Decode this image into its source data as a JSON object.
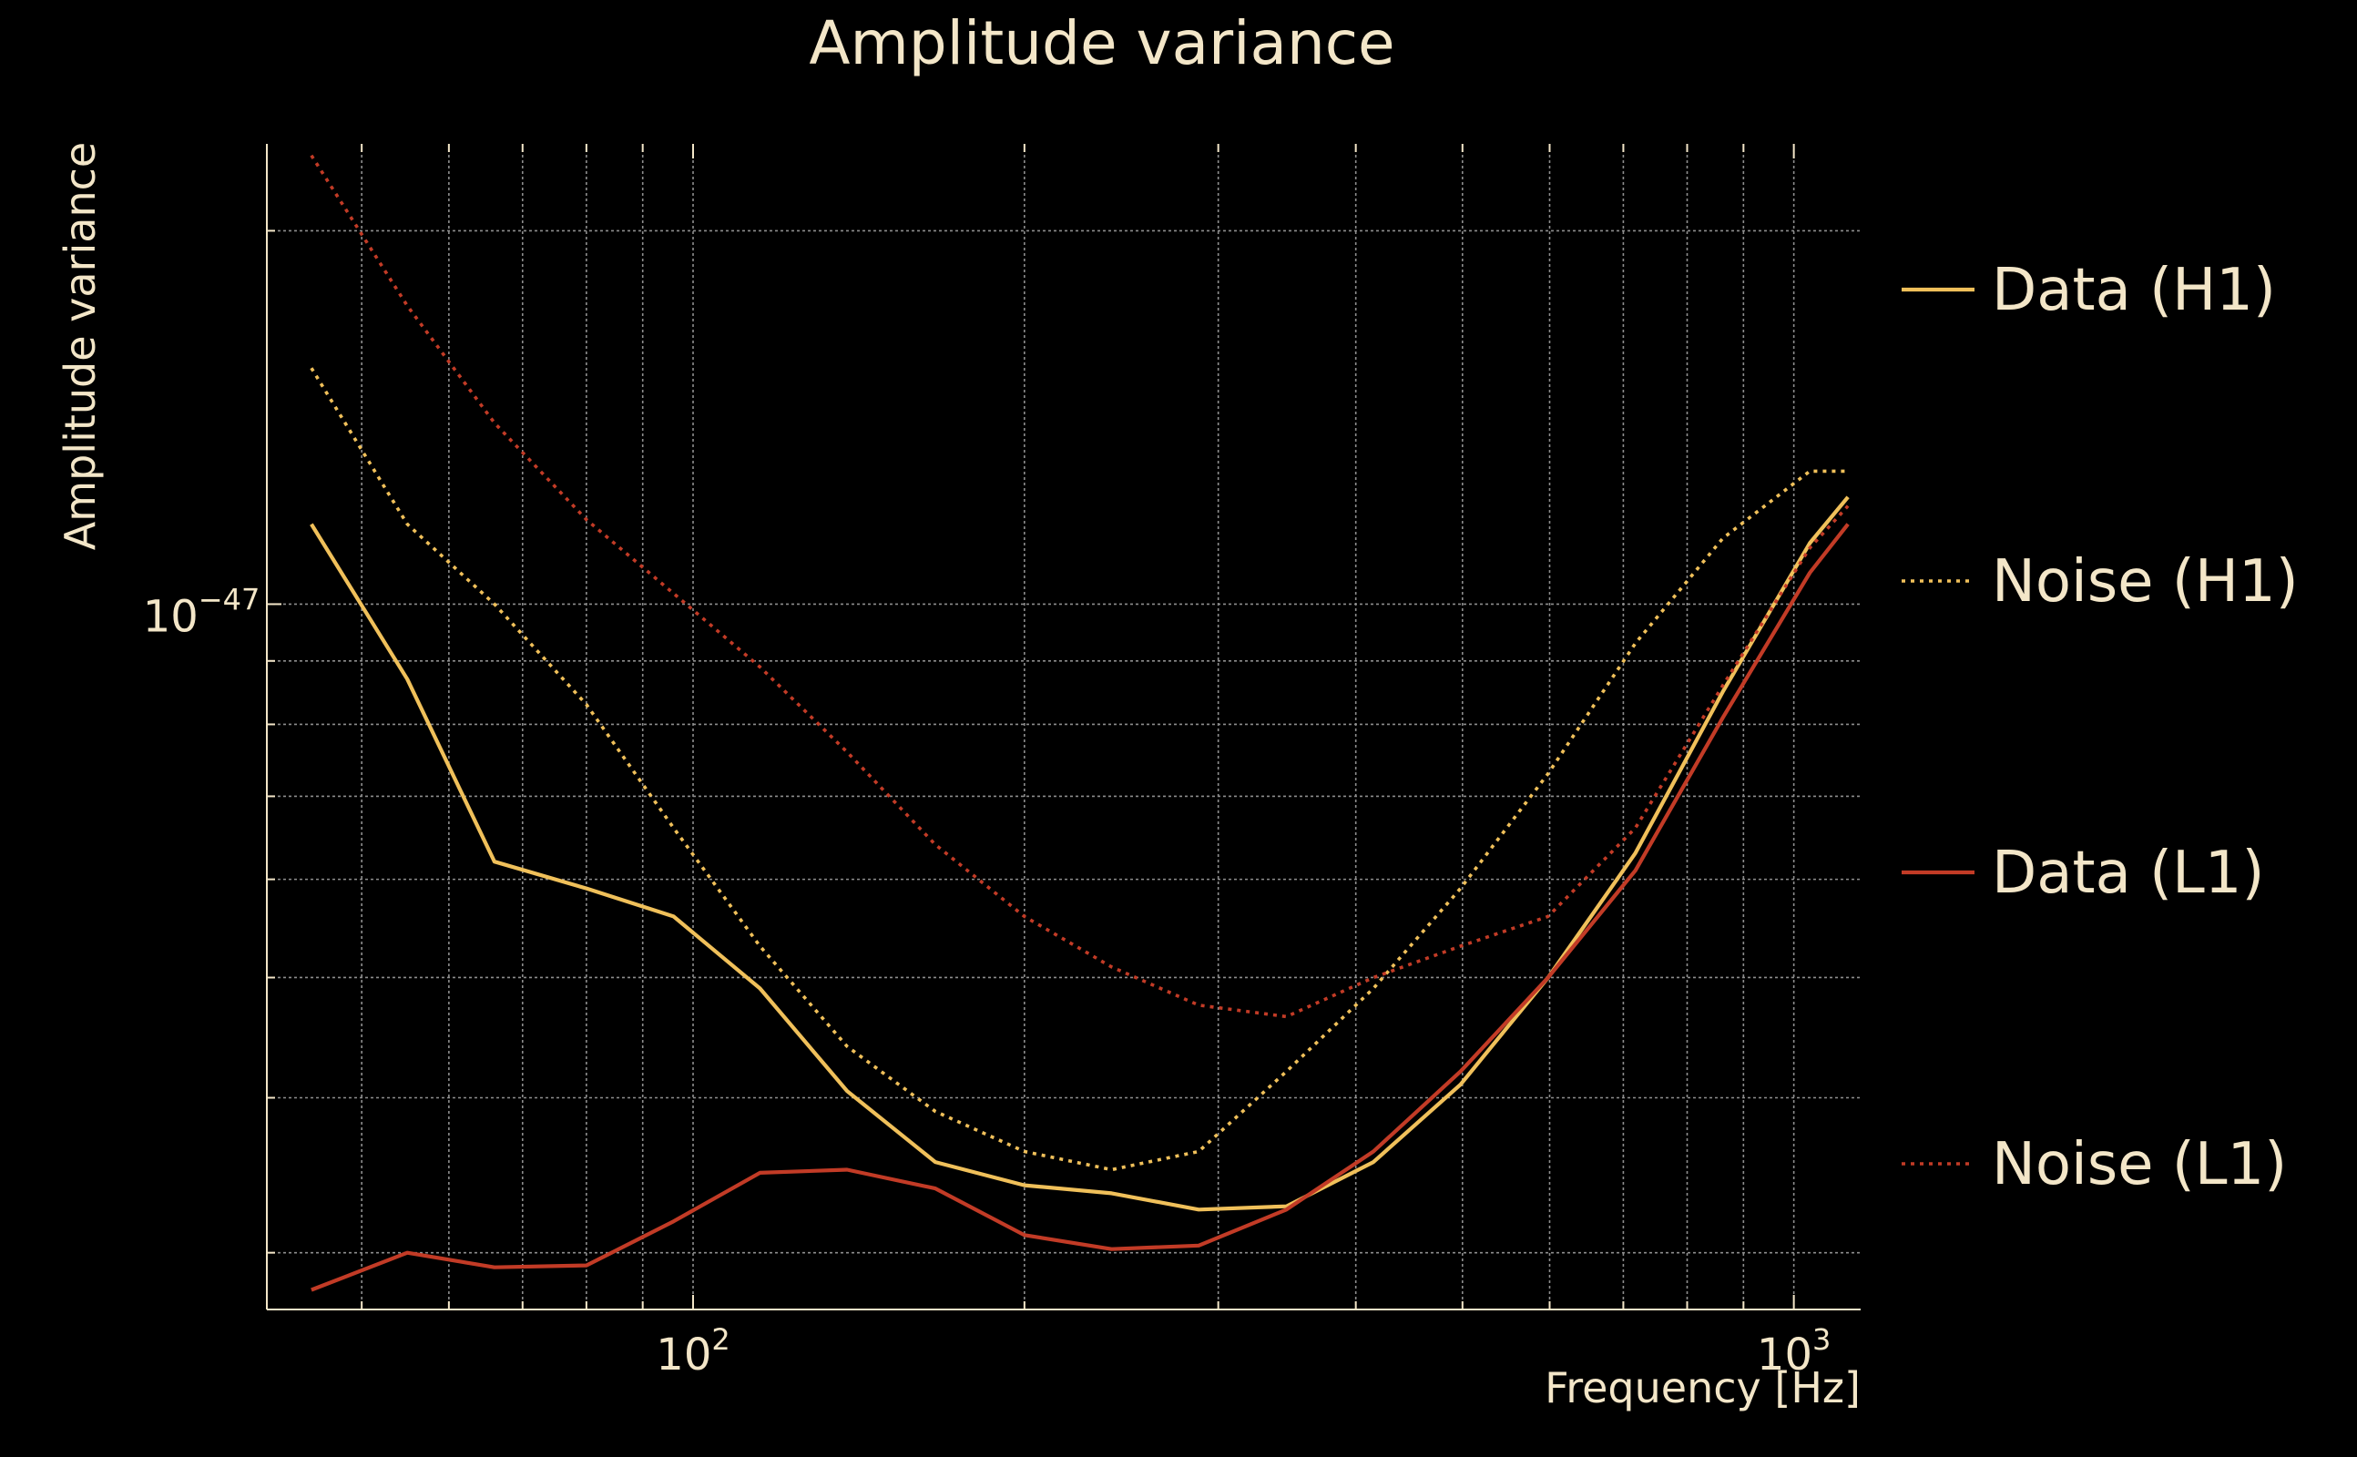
{
  "chart_data": {
    "type": "line",
    "title": "Amplitude variance",
    "xlabel": "Frequency [Hz]",
    "ylabel": "Amplitude variance",
    "xscale": "log",
    "yscale": "log",
    "xlim": [
      41,
      1150
    ],
    "ylim": [
      2.7e-48,
      2.35e-47
    ],
    "x_ticks": [
      {
        "base": "10",
        "exp": "2",
        "value": 100
      },
      {
        "base": "10",
        "exp": "3",
        "value": 1000
      }
    ],
    "y_ticks": [
      {
        "base": "10",
        "exp": "−47",
        "value": 1e-47
      }
    ],
    "grid": true,
    "legend_position": "right",
    "x": [
      45,
      55,
      66,
      80,
      96,
      115,
      138,
      166,
      200,
      240,
      288,
      346,
      415,
      498,
      598,
      718,
      862,
      1034,
      1120
    ],
    "series": [
      {
        "name": "Data (H1)",
        "color": "#F0C05A",
        "style": "solid",
        "values": [
          1.16e-47,
          8.7e-48,
          6.2e-48,
          5.9e-48,
          5.6e-48,
          4.9e-48,
          4.05e-48,
          3.55e-48,
          3.4e-48,
          3.35e-48,
          3.25e-48,
          3.27e-48,
          3.55e-48,
          4.1e-48,
          5e-48,
          6.3e-48,
          8.5e-48,
          1.12e-47,
          1.22e-47
        ]
      },
      {
        "name": "Noise (H1)",
        "color": "#F0C05A",
        "style": "dotted",
        "values": [
          1.55e-47,
          1.16e-47,
          1e-47,
          8.3e-48,
          6.6e-48,
          5.3e-48,
          4.4e-48,
          3.9e-48,
          3.62e-48,
          3.5e-48,
          3.62e-48,
          4.2e-48,
          4.9e-48,
          5.9e-48,
          7.3e-48,
          9.3e-48,
          1.13e-47,
          1.28e-47,
          1.28e-47
        ]
      },
      {
        "name": "Data (L1)",
        "color": "#C23B26",
        "style": "solid",
        "values": [
          2.8e-48,
          3e-48,
          2.92e-48,
          2.93e-48,
          3.18e-48,
          3.48e-48,
          3.5e-48,
          3.38e-48,
          3.1e-48,
          3.02e-48,
          3.04e-48,
          3.25e-48,
          3.62e-48,
          4.2e-48,
          5e-48,
          6.1e-48,
          8.1e-48,
          1.06e-47,
          1.16e-47
        ]
      },
      {
        "name": "Noise (L1)",
        "color": "#C23B26",
        "style": "dotted",
        "values": [
          2.3e-47,
          1.74e-47,
          1.4e-47,
          1.17e-47,
          1.02e-47,
          8.9e-48,
          7.6e-48,
          6.4e-48,
          5.6e-48,
          5.1e-48,
          4.75e-48,
          4.65e-48,
          5e-48,
          5.3e-48,
          5.6e-48,
          6.6e-48,
          8.6e-48,
          1.11e-47,
          1.2e-47
        ]
      }
    ]
  }
}
